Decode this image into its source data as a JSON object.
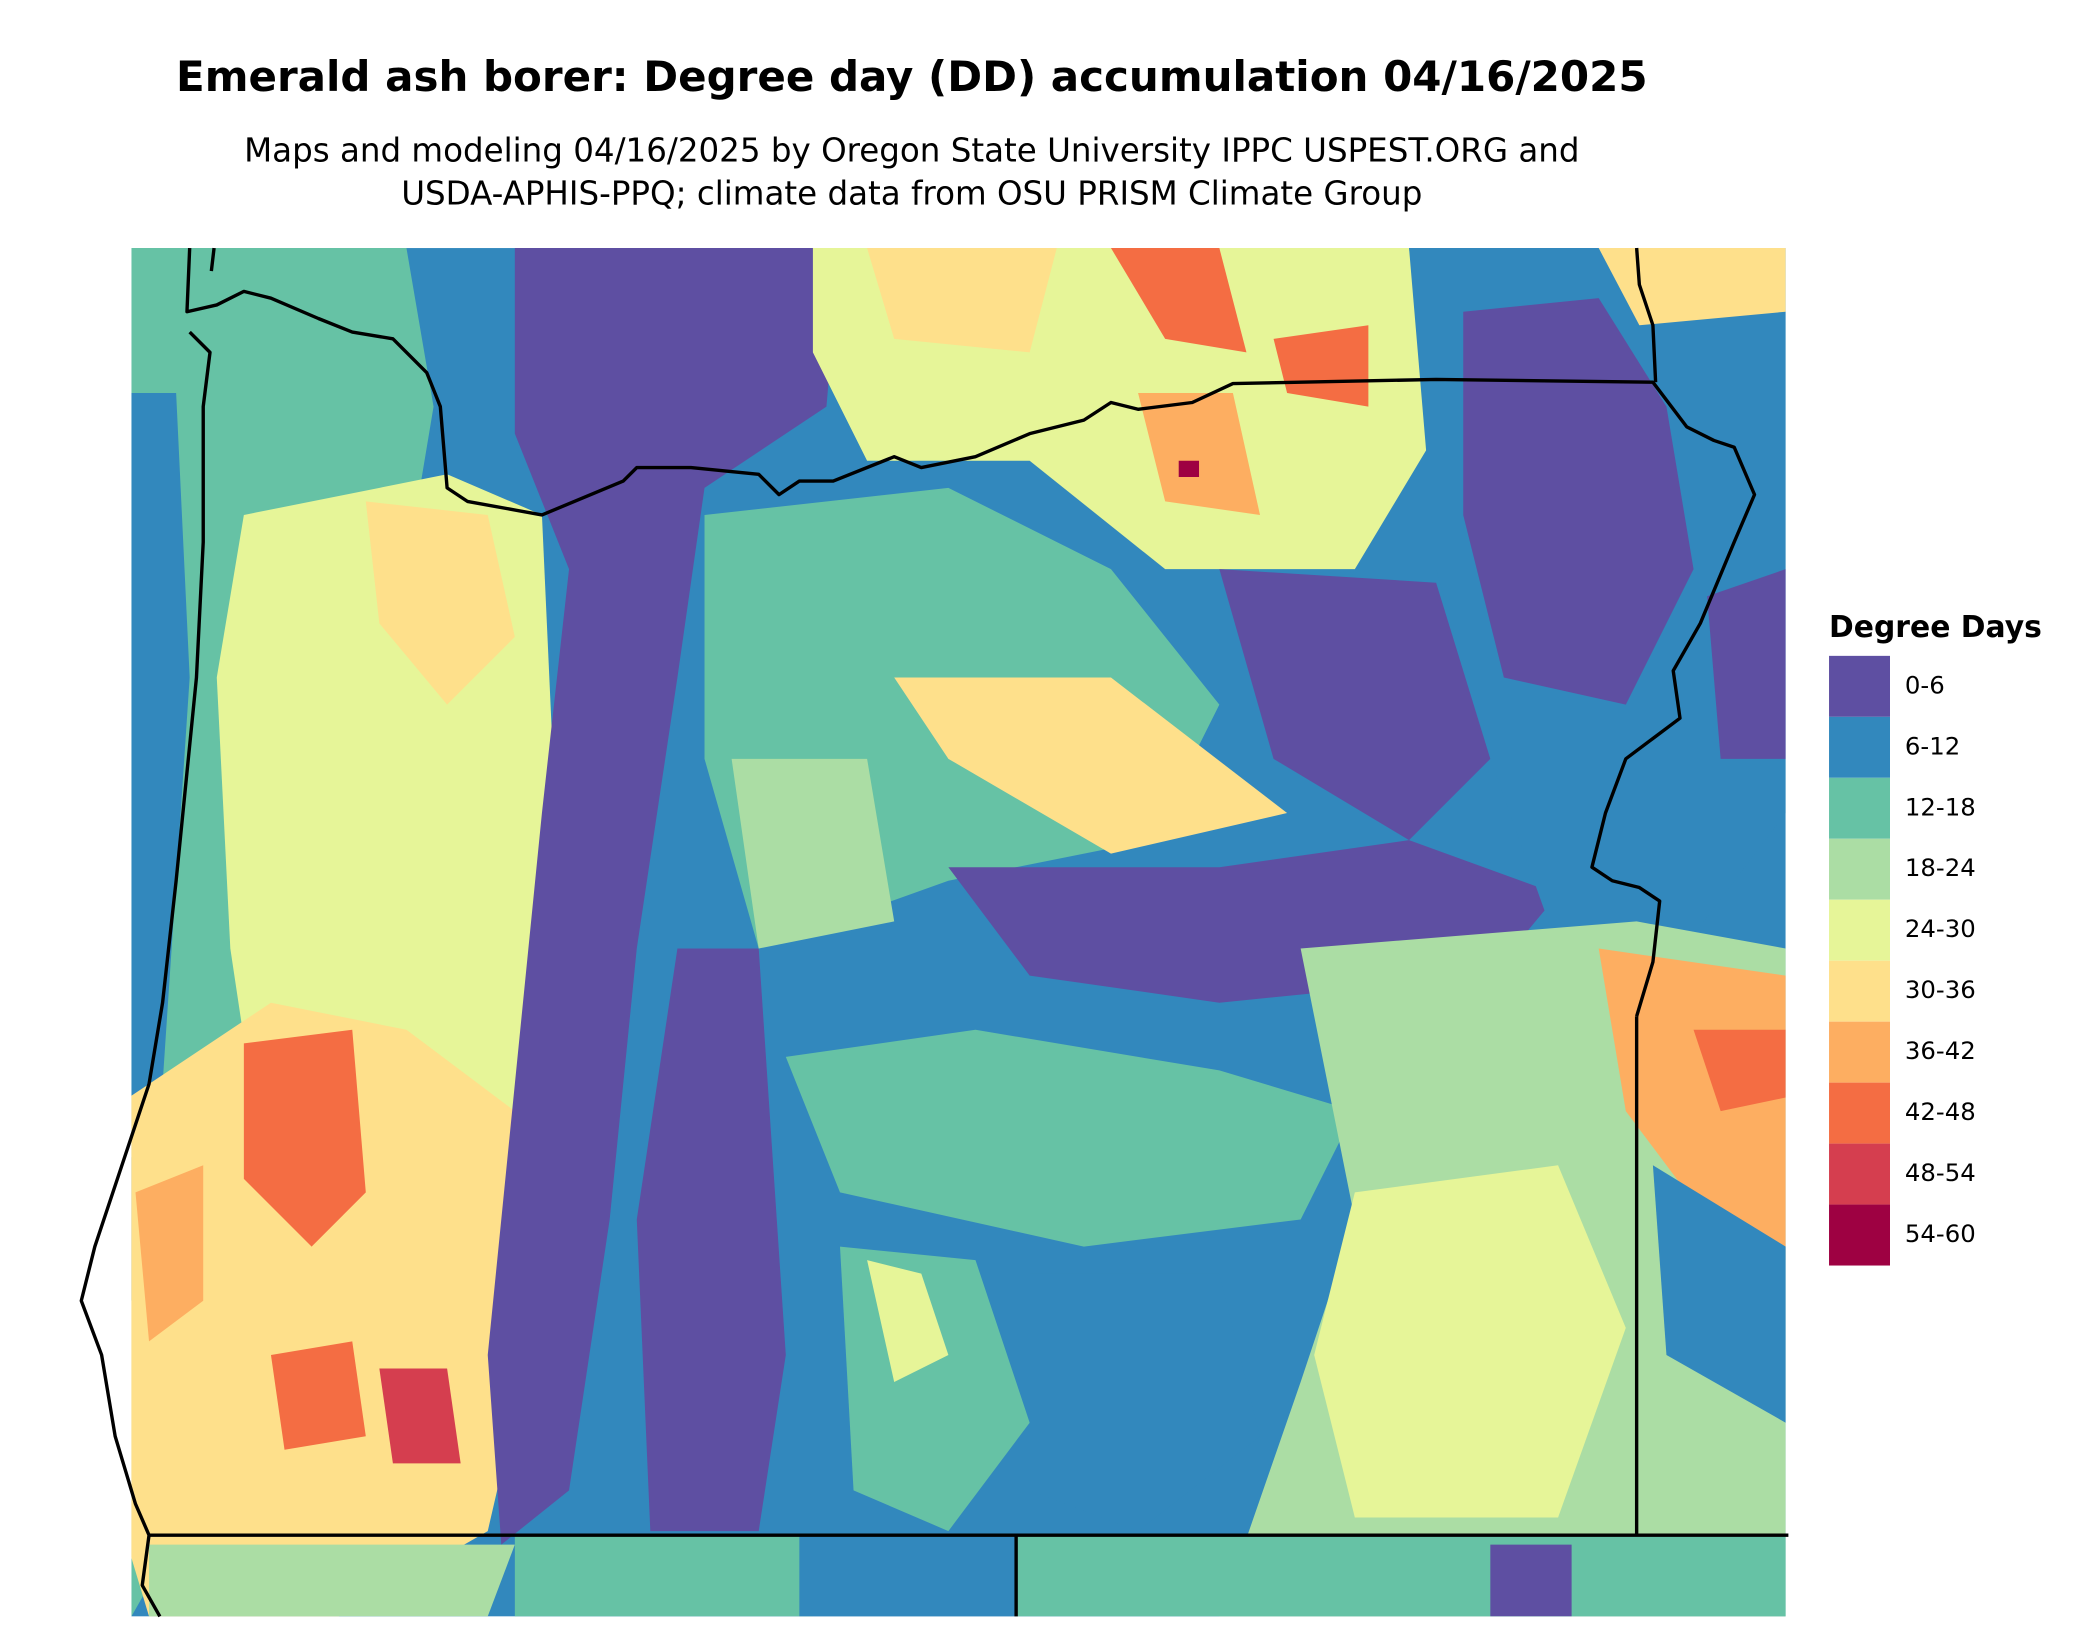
{
  "title": "Emerald ash borer: Degree day (DD) accumulation 04/16/2025",
  "subtitle": [
    "Maps and modeling 04/16/2025 by Oregon State University IPPC USPEST.ORG and",
    "USDA-APHIS-PPQ; climate data from OSU PRISM Climate Group"
  ],
  "legend": {
    "title": "Degree Days",
    "items": [
      {
        "label": "0-6",
        "color": "#5e4fa2"
      },
      {
        "label": "6-12",
        "color": "#3288bd"
      },
      {
        "label": "12-18",
        "color": "#66c2a5"
      },
      {
        "label": "18-24",
        "color": "#abdda4"
      },
      {
        "label": "24-30",
        "color": "#e6f598"
      },
      {
        "label": "30-36",
        "color": "#fee08b"
      },
      {
        "label": "36-42",
        "color": "#fdae61"
      },
      {
        "label": "42-48",
        "color": "#f46d43"
      },
      {
        "label": "48-54",
        "color": "#d53e4f"
      },
      {
        "label": "54-60",
        "color": "#9e0142"
      }
    ]
  }
}
